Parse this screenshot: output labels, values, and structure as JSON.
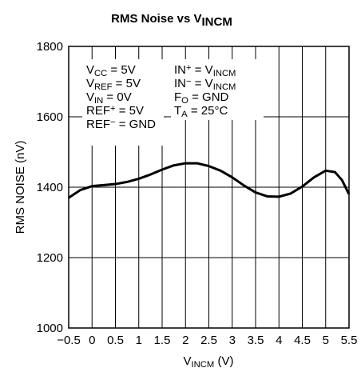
{
  "chart_data": {
    "type": "line",
    "title": [
      {
        "text": "RMS Noise vs V"
      },
      {
        "sub": "INCM"
      }
    ],
    "xlabel": [
      {
        "text": "V"
      },
      {
        "sub": "INCM"
      },
      {
        "text": " (V)"
      }
    ],
    "ylabel": "RMS NOISE (nV)",
    "annotations": [
      [
        {
          "text": "V"
        },
        {
          "sub": "CC"
        },
        {
          "text": " = 5V"
        }
      ],
      [
        {
          "text": "V"
        },
        {
          "sub": "REF"
        },
        {
          "text": " = 5V"
        }
      ],
      [
        {
          "text": "V"
        },
        {
          "sub": "IN"
        },
        {
          "text": " = 0V"
        }
      ],
      [
        {
          "text": "REF"
        },
        {
          "sup": "+"
        },
        {
          "text": " = 5V"
        }
      ],
      [
        {
          "text": "REF"
        },
        {
          "sup": "−"
        },
        {
          "text": " = GND"
        }
      ],
      [
        {
          "text": "IN"
        },
        {
          "sup": "+"
        },
        {
          "text": " = V"
        },
        {
          "sub": "INCM"
        }
      ],
      [
        {
          "text": "IN"
        },
        {
          "sup": "−"
        },
        {
          "text": " = V"
        },
        {
          "sub": "INCM"
        }
      ],
      [
        {
          "text": "F"
        },
        {
          "sub": "O"
        },
        {
          "text": " = GND"
        }
      ],
      [
        {
          "text": "T"
        },
        {
          "sub": "A"
        },
        {
          "text": " = 25°C"
        }
      ]
    ],
    "x": [
      -0.5,
      -0.25,
      0,
      0.25,
      0.5,
      0.75,
      1,
      1.25,
      1.5,
      1.75,
      2,
      2.25,
      2.5,
      2.75,
      3,
      3.25,
      3.5,
      3.75,
      4,
      4.25,
      4.5,
      4.75,
      5,
      5.2,
      5.35,
      5.5
    ],
    "values": [
      1370,
      1392,
      1403,
      1406,
      1409,
      1415,
      1424,
      1436,
      1450,
      1462,
      1468,
      1468,
      1460,
      1447,
      1428,
      1405,
      1385,
      1374,
      1373,
      1382,
      1402,
      1428,
      1447,
      1443,
      1420,
      1380
    ],
    "color": "#000000",
    "xlim": [
      -0.5,
      5.5
    ],
    "xticks": [
      {
        "value": -0.5,
        "label": "−0.5"
      },
      0,
      0.5,
      1,
      1.5,
      2,
      2.5,
      3,
      3.5,
      4,
      4.5,
      5,
      5.5
    ],
    "ylim": [
      1000,
      1800
    ],
    "yticks": [
      1000,
      1200,
      1400,
      1600,
      1800
    ],
    "grid": true
  }
}
